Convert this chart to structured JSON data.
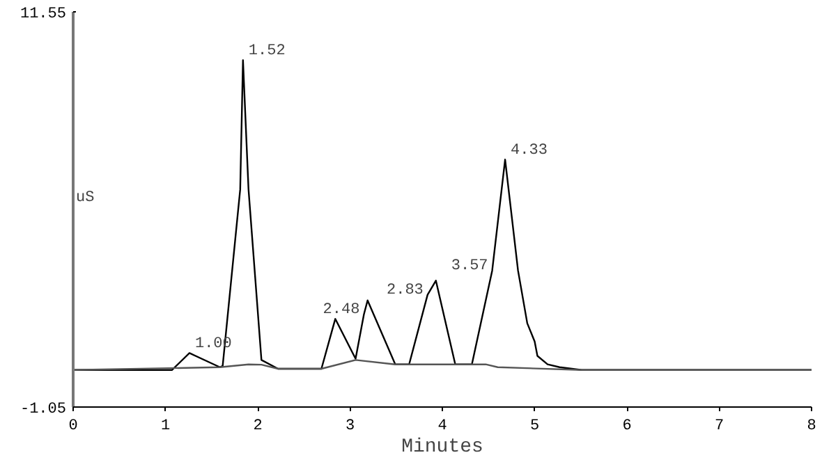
{
  "chart_data": {
    "type": "line",
    "xlabel": "Minutes",
    "ylabel": "uS",
    "xlim": [
      0,
      8
    ],
    "xticks": [
      0,
      1,
      2,
      3,
      4,
      5,
      6,
      7,
      8
    ],
    "ylim": [
      -1.05,
      11.55
    ],
    "yticks": [
      -1.05,
      11.55
    ],
    "series": [
      {
        "color": "#000000",
        "x": [
          0,
          1.07,
          1.26,
          1.59,
          1.62,
          1.81,
          1.84,
          1.9,
          2.04,
          2.22,
          2.69,
          2.84,
          3.06,
          3.15,
          3.19,
          3.49,
          3.64,
          3.84,
          3.93,
          4.14,
          4.32,
          4.54,
          4.68,
          4.82,
          4.92,
          5.0,
          5.03,
          5.14,
          5.27,
          5.51,
          8
        ],
        "values": [
          0.13,
          0.13,
          0.67,
          0.22,
          0.26,
          5.89,
          10.01,
          5.89,
          0.45,
          0.17,
          0.17,
          1.76,
          0.49,
          1.9,
          2.35,
          0.31,
          0.31,
          2.53,
          2.98,
          0.31,
          0.31,
          3.3,
          6.84,
          3.3,
          1.62,
          1.04,
          0.58,
          0.31,
          0.22,
          0.13,
          0.13
        ]
      },
      {
        "color": "#555555",
        "x": [
          0,
          1.59,
          1.9,
          2.04,
          2.22,
          2.69,
          3.06,
          3.49,
          4.32,
          4.47,
          4.6,
          5.51,
          8
        ],
        "values": [
          0.13,
          0.22,
          0.31,
          0.3,
          0.17,
          0.17,
          0.45,
          0.31,
          0.31,
          0.31,
          0.22,
          0.13,
          0.13
        ]
      }
    ],
    "annotations": [
      {
        "text": "1.00",
        "x": 1.26,
        "y": 0.67
      },
      {
        "text": "1.52",
        "x": 1.84,
        "y": 10.01
      },
      {
        "text": "2.48",
        "x": 3.15,
        "y": 1.9
      },
      {
        "text": "2.83",
        "x": 3.84,
        "y": 2.53
      },
      {
        "text": "3.57",
        "x": 4.54,
        "y": 3.3
      },
      {
        "text": "4.33",
        "x": 4.68,
        "y": 6.84
      }
    ]
  }
}
